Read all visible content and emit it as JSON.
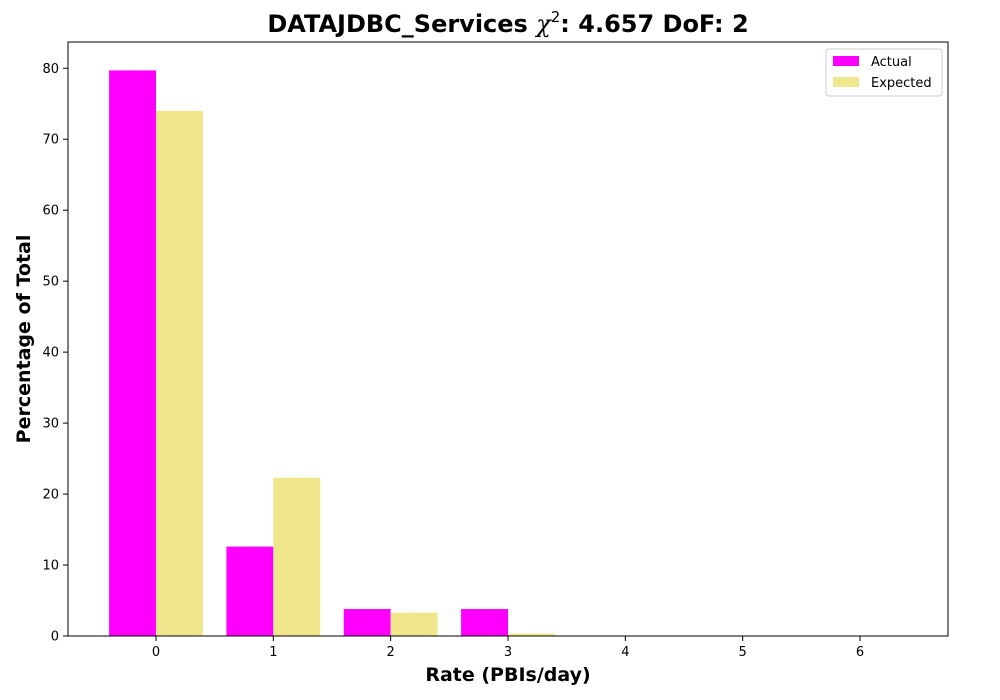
{
  "chart_data": {
    "type": "bar",
    "title_main": "DATAJDBC_Services ",
    "title_chi": "χ",
    "title_sup": "2",
    "title_rest": ": 4.657 DoF: 2",
    "xlabel": "Rate (PBIs/day)",
    "ylabel": "Percentage of Total",
    "categories": [
      "0",
      "1",
      "2",
      "3",
      "4",
      "5",
      "6"
    ],
    "x": [
      0,
      1,
      2,
      3,
      4,
      5,
      6
    ],
    "series": [
      {
        "name": "Actual",
        "color": "#ff00ff",
        "values": [
          79.7,
          12.6,
          3.8,
          3.8,
          0,
          0,
          0
        ]
      },
      {
        "name": "Expected",
        "color": "#f0e68c",
        "values": [
          74.0,
          22.3,
          3.3,
          0.35,
          0.03,
          0,
          0
        ]
      }
    ],
    "xlim": [
      -0.75,
      6.75
    ],
    "ylim": [
      0,
      83.7
    ],
    "yticks": [
      0,
      10,
      20,
      30,
      40,
      50,
      60,
      70,
      80
    ],
    "grid": false,
    "legend_position": "top-right"
  }
}
